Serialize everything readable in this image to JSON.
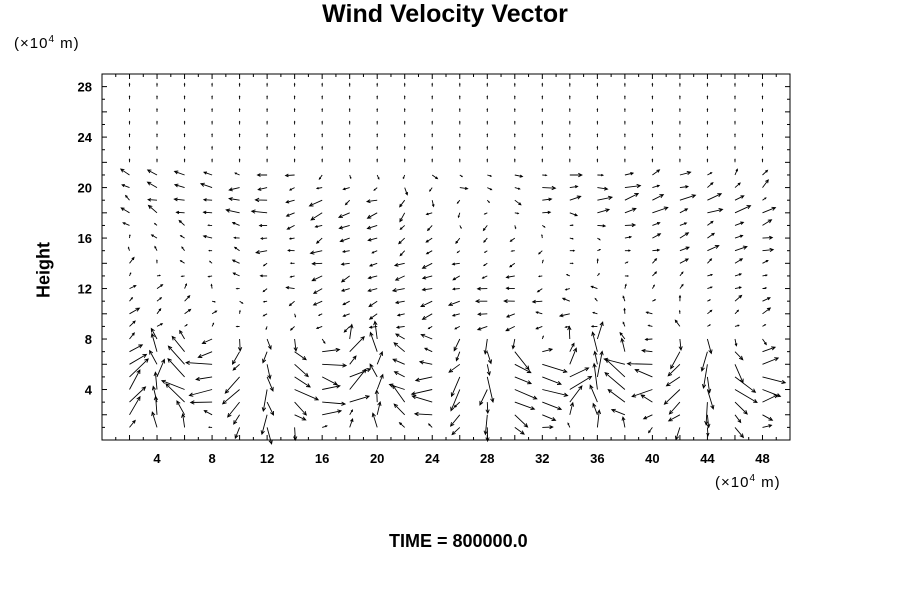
{
  "chart_data": {
    "type": "vector_field",
    "title": "Wind Velocity Vector",
    "ylabel": "Height",
    "x_unit_prefix": "(×10",
    "x_unit_exp": "4",
    "x_unit_suffix": " m)",
    "y_unit_prefix": "(×10",
    "y_unit_exp": "4",
    "y_unit_suffix": " m)",
    "xlim": [
      0,
      50
    ],
    "ylim": [
      0,
      29
    ],
    "x_ticks": [
      "4",
      "8",
      "12",
      "16",
      "20",
      "24",
      "28",
      "32",
      "36",
      "40",
      "44",
      "48"
    ],
    "x_tick_values": [
      4,
      8,
      12,
      16,
      20,
      24,
      28,
      32,
      36,
      40,
      44,
      48
    ],
    "y_ticks": [
      "4",
      "8",
      "12",
      "16",
      "20",
      "24",
      "28"
    ],
    "y_tick_values": [
      4,
      8,
      12,
      16,
      20,
      24,
      28
    ],
    "grid": false,
    "vector_grid": {
      "x_start": 0,
      "x_step": 2,
      "x_count": 26,
      "y_start": 0,
      "y_step": 1,
      "y_count": 30
    },
    "time_label": "TIME = 800000.0"
  }
}
